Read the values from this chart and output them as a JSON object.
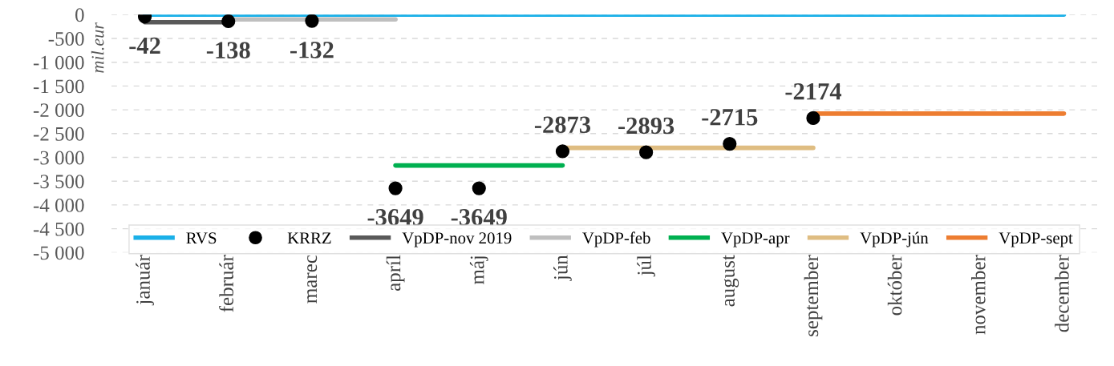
{
  "chart_data": {
    "type": "line",
    "ylabel": "mil.eur",
    "categories": [
      "január",
      "február",
      "marec",
      "apríl",
      "máj",
      "jún",
      "júl",
      "august",
      "september",
      "október",
      "november",
      "december"
    ],
    "series": [
      {
        "name": "RVS",
        "color": "#1ab0e8",
        "values": [
          0,
          0,
          0,
          0,
          0,
          0,
          0,
          0,
          0,
          0,
          0,
          0
        ]
      },
      {
        "name": "KRRZ",
        "type": "scatter",
        "color": "#000000",
        "values": [
          -42,
          -138,
          -132,
          -3649,
          -3649,
          -2873,
          -2893,
          -2715,
          -2174,
          null,
          null,
          null
        ],
        "value_labels": [
          "-42",
          "-138",
          "-132",
          "-3649",
          "-3649",
          "-2873",
          "-2893",
          "-2715",
          "-2174",
          null,
          null,
          null
        ]
      },
      {
        "name": "VpDP-nov 2019",
        "color": "#595959",
        "values": [
          -160,
          -160,
          null,
          null,
          null,
          null,
          null,
          null,
          null,
          null,
          null,
          null
        ]
      },
      {
        "name": "VpDP-feb",
        "color": "#bfbfbf",
        "values": [
          null,
          -100,
          -100,
          -100,
          null,
          null,
          null,
          null,
          null,
          null,
          null,
          null
        ]
      },
      {
        "name": "VpDP-apr",
        "color": "#00b050",
        "values": [
          null,
          null,
          null,
          -3170,
          -3170,
          -3170,
          null,
          null,
          null,
          null,
          null,
          null
        ]
      },
      {
        "name": "VpDP-jún",
        "color": "#dfbd82",
        "values": [
          null,
          null,
          null,
          null,
          null,
          -2800,
          -2800,
          -2800,
          -2800,
          null,
          null,
          null
        ]
      },
      {
        "name": "VpDP-sept",
        "color": "#ed7d31",
        "values": [
          null,
          null,
          null,
          null,
          null,
          null,
          null,
          null,
          -2080,
          -2080,
          -2080,
          -2080
        ]
      }
    ],
    "ylim": [
      -5000,
      0
    ],
    "yticks": [
      0,
      {
        "value": -500,
        "label": "-500"
      },
      {
        "value": -1000,
        "label": "-1 000"
      },
      {
        "value": -1500,
        "label": "-1 500"
      },
      {
        "value": -2000,
        "label": "-2 000"
      },
      {
        "value": -2500,
        "label": "-2 500"
      },
      {
        "value": -3000,
        "label": "-3 000"
      },
      {
        "value": -3500,
        "label": "-3 500"
      },
      {
        "value": -4000,
        "label": "-4 000"
      },
      {
        "value": -4500,
        "label": "-4 500"
      },
      {
        "value": -5000,
        "label": "-5 000"
      }
    ],
    "grid": "y",
    "legend": "bottom",
    "line_style": "solid"
  }
}
